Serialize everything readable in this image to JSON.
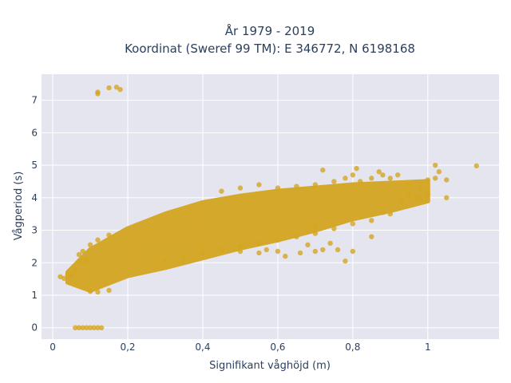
{
  "chart_data": {
    "type": "scatter",
    "title_line1": "År 1979 - 2019",
    "title_line2": "Koordinat (Sweref 99 TM): E 346772, N 6198168",
    "xlabel": "Signifikant våghöjd (m)",
    "ylabel": "Vågperiod (s)",
    "xlim": [
      -0.03,
      1.19
    ],
    "ylim": [
      -0.35,
      7.8
    ],
    "x_ticks": [
      0,
      0.2,
      0.4,
      0.6,
      0.8,
      1
    ],
    "x_tick_labels": [
      "0",
      "0,2",
      "0,4",
      "0,6",
      "0,8",
      "1"
    ],
    "y_ticks": [
      0,
      1,
      2,
      3,
      4,
      5,
      6,
      7
    ],
    "y_tick_labels": [
      "0",
      "1",
      "2",
      "3",
      "4",
      "5",
      "6",
      "7"
    ],
    "grid": true,
    "legend": "none",
    "marker_color": "#d4a520",
    "plot_background": "#e5e5ef",
    "series": [
      {
        "band_lower": [
          [
            0.04,
            1.4
          ],
          [
            0.1,
            1.15
          ],
          [
            0.2,
            1.6
          ],
          [
            0.3,
            1.85
          ],
          [
            0.4,
            2.15
          ],
          [
            0.5,
            2.45
          ],
          [
            0.6,
            2.7
          ],
          [
            0.7,
            3.0
          ],
          [
            0.8,
            3.35
          ],
          [
            0.9,
            3.6
          ],
          [
            1.0,
            3.9
          ]
        ],
        "band_upper": [
          [
            0.04,
            1.7
          ],
          [
            0.1,
            2.4
          ],
          [
            0.2,
            3.05
          ],
          [
            0.3,
            3.5
          ],
          [
            0.4,
            3.85
          ],
          [
            0.5,
            4.05
          ],
          [
            0.6,
            4.2
          ],
          [
            0.7,
            4.3
          ],
          [
            0.8,
            4.4
          ],
          [
            0.9,
            4.45
          ],
          [
            1.0,
            4.5
          ]
        ],
        "points": [
          [
            0.02,
            1.57
          ],
          [
            0.03,
            1.52
          ],
          [
            0.05,
            1.62
          ],
          [
            0.06,
            1.75
          ],
          [
            0.07,
            2.05
          ],
          [
            0.07,
            2.25
          ],
          [
            0.08,
            2.35
          ],
          [
            0.09,
            2.05
          ],
          [
            0.1,
            2.55
          ],
          [
            0.12,
            2.7
          ],
          [
            0.15,
            2.85
          ],
          [
            0.1,
            1.12
          ],
          [
            0.12,
            1.1
          ],
          [
            0.15,
            1.15
          ],
          [
            0.12,
            7.2
          ],
          [
            0.12,
            7.25
          ],
          [
            0.15,
            7.38
          ],
          [
            0.17,
            7.4
          ],
          [
            0.18,
            7.33
          ],
          [
            0.06,
            0.0
          ],
          [
            0.07,
            0.0
          ],
          [
            0.08,
            0.0
          ],
          [
            0.09,
            0.0
          ],
          [
            0.1,
            0.0
          ],
          [
            0.11,
            0.0
          ],
          [
            0.12,
            0.0
          ],
          [
            0.13,
            0.0
          ],
          [
            0.3,
            2.05
          ],
          [
            0.35,
            2.15
          ],
          [
            0.4,
            2.3
          ],
          [
            0.45,
            2.4
          ],
          [
            0.5,
            2.5
          ],
          [
            0.55,
            2.3
          ],
          [
            0.6,
            2.35
          ],
          [
            0.62,
            2.2
          ],
          [
            0.66,
            2.3
          ],
          [
            0.7,
            2.35
          ],
          [
            0.72,
            2.4
          ],
          [
            0.76,
            2.4
          ],
          [
            0.78,
            2.05
          ],
          [
            0.8,
            2.35
          ],
          [
            0.85,
            2.8
          ],
          [
            0.68,
            2.55
          ],
          [
            0.74,
            2.6
          ],
          [
            0.55,
            2.6
          ],
          [
            0.5,
            2.35
          ],
          [
            0.57,
            2.4
          ],
          [
            0.45,
            4.2
          ],
          [
            0.5,
            4.3
          ],
          [
            0.55,
            4.4
          ],
          [
            0.6,
            4.3
          ],
          [
            0.65,
            4.35
          ],
          [
            0.7,
            4.4
          ],
          [
            0.75,
            4.5
          ],
          [
            0.78,
            4.6
          ],
          [
            0.8,
            4.7
          ],
          [
            0.82,
            4.5
          ],
          [
            0.85,
            4.6
          ],
          [
            0.87,
            4.8
          ],
          [
            0.9,
            4.6
          ],
          [
            0.92,
            4.7
          ],
          [
            0.95,
            4.4
          ],
          [
            0.98,
            4.3
          ],
          [
            1.0,
            4.55
          ],
          [
            1.02,
            4.6
          ],
          [
            1.03,
            4.8
          ],
          [
            1.05,
            4.55
          ],
          [
            1.05,
            4.0
          ],
          [
            0.72,
            4.85
          ],
          [
            0.81,
            4.9
          ],
          [
            0.88,
            4.7
          ],
          [
            0.97,
            4.0
          ],
          [
            1.13,
            4.98
          ],
          [
            1.02,
            5.0
          ],
          [
            0.9,
            3.5
          ],
          [
            0.93,
            3.9
          ],
          [
            0.95,
            4.1
          ],
          [
            0.98,
            3.95
          ],
          [
            1.0,
            4.1
          ],
          [
            0.85,
            3.3
          ],
          [
            0.88,
            3.55
          ],
          [
            0.6,
            2.7
          ],
          [
            0.65,
            2.8
          ],
          [
            0.7,
            3.1
          ],
          [
            0.75,
            3.05
          ],
          [
            0.7,
            2.9
          ],
          [
            0.8,
            3.2
          ]
        ]
      }
    ]
  }
}
